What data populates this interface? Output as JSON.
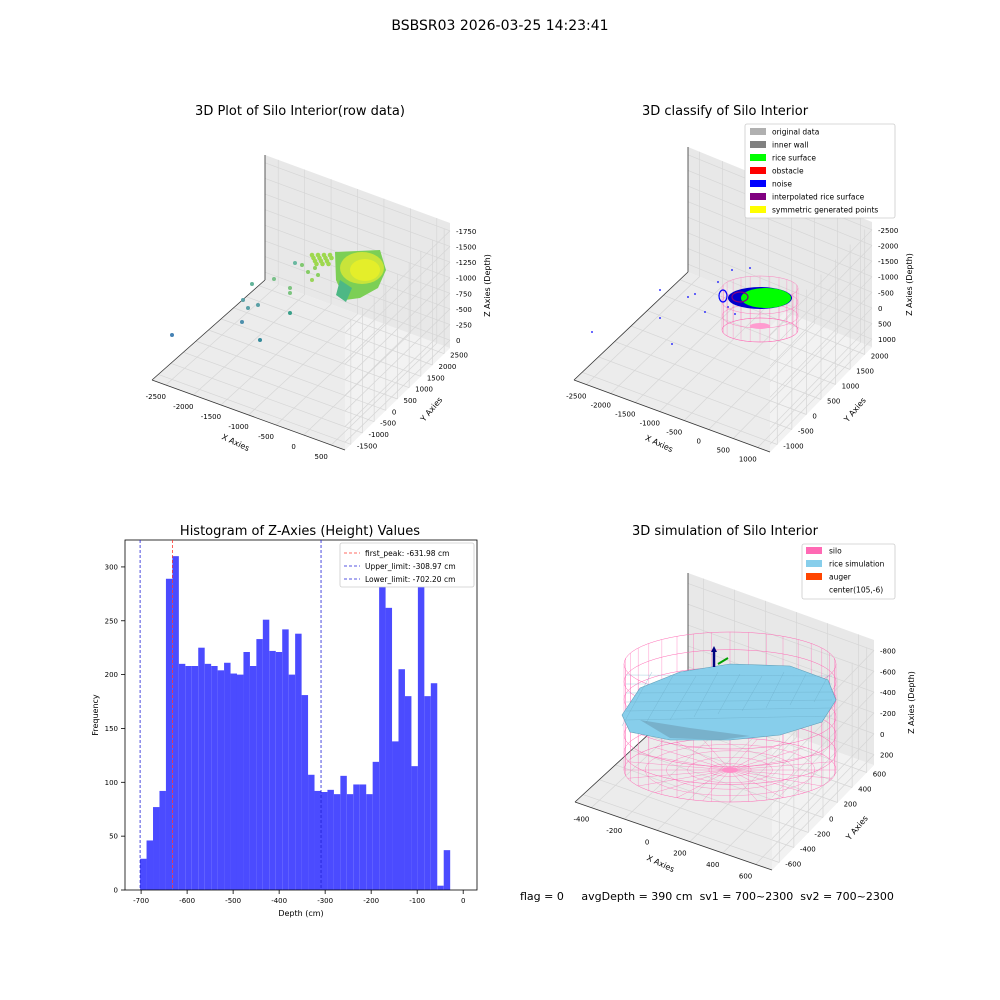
{
  "suptitle": "BSBSR03 2026-03-25 14:23:41",
  "footer": {
    "flag": "flag = 0",
    "avg_depth": "avgDepth = 390 cm",
    "sv1": "sv1 = 700~2300",
    "sv2": "sv2 = 700~2300"
  },
  "colors": {
    "hist_bar": "#4b4bff",
    "first_peak": "#ff3b30",
    "limits": "#1f1fd6",
    "silo": "#ff69b4",
    "rice_sim": "#87ceeb",
    "auger": "#ff4500",
    "rice_surface": "#00ff00",
    "noise": "#0000ff"
  },
  "chart_data": [
    {
      "type": "scatter3d",
      "title": "3D Plot of Silo Interior(row data)",
      "xlabel": "X Axies",
      "ylabel": "Y Axies",
      "zlabel": "Z Axies (Depth)",
      "x_ticks": [
        "-2500",
        "-2000",
        "-1500",
        "-1000",
        "-500",
        "0",
        "500"
      ],
      "y_ticks": [
        "-1500",
        "-1000",
        "-500",
        "0",
        "500",
        "1000",
        "1500",
        "2000",
        "2500"
      ],
      "z_ticks": [
        "0",
        "-250",
        "-500",
        "-750",
        "-1000",
        "-1250",
        "-1500",
        "-1750"
      ]
    },
    {
      "type": "scatter3d",
      "title": "3D classify of Silo Interior",
      "xlabel": "X Axies",
      "ylabel": "Y Axies",
      "zlabel": "Z Axies (Depth)",
      "x_ticks": [
        "-2500",
        "-2000",
        "-1500",
        "-1000",
        "-500",
        "0",
        "500",
        "1000"
      ],
      "y_ticks": [
        "-1000",
        "-500",
        "0",
        "500",
        "1000",
        "1500",
        "2000"
      ],
      "z_ticks": [
        "1000",
        "500",
        "0",
        "-500",
        "-1000",
        "-1500",
        "-2000",
        "-2500"
      ],
      "legend": [
        {
          "label": "original data",
          "color": "#b0b0b0"
        },
        {
          "label": "inner wall",
          "color": "#808080"
        },
        {
          "label": "rice surface",
          "color": "#00ff00"
        },
        {
          "label": "obstacle",
          "color": "#ff0000"
        },
        {
          "label": "noise",
          "color": "#0000ff"
        },
        {
          "label": "interpolated rice surface",
          "color": "#800080"
        },
        {
          "label": "symmetric generated points",
          "color": "#ffff00"
        }
      ]
    },
    {
      "type": "bar",
      "title": "Histogram of Z-Axies (Height) Values",
      "xlabel": "Depth (cm)",
      "ylabel": "Frequency",
      "xlim": [
        -735,
        30
      ],
      "ylim": [
        0,
        325
      ],
      "x_ticks": [
        -700,
        -600,
        -500,
        -400,
        -300,
        -200,
        -100,
        0
      ],
      "y_ticks": [
        0,
        50,
        100,
        150,
        200,
        250,
        300
      ],
      "bin_start": -702.2,
      "bin_width": 14.04,
      "values": [
        29,
        46,
        77,
        92,
        289,
        310,
        210,
        208,
        208,
        225,
        210,
        208,
        204,
        211,
        201,
        200,
        221,
        208,
        233,
        251,
        222,
        221,
        242,
        200,
        238,
        181,
        107,
        92,
        91,
        93,
        89,
        106,
        89,
        98,
        98,
        89,
        119,
        290,
        262,
        138,
        205,
        180,
        115,
        290,
        180,
        192,
        4,
        37
      ],
      "vlines": [
        {
          "x": -631.98,
          "label": "first_peak: -631.98 cm",
          "color": "#ff3b30"
        },
        {
          "x": -308.97,
          "label": "Upper_limit: -308.97 cm",
          "color": "#1f1fd6"
        },
        {
          "x": -702.2,
          "label": "Lower_limit: -702.20 cm",
          "color": "#1f1fd6"
        }
      ]
    },
    {
      "type": "surface3d",
      "title": "3D simulation of Silo Interior",
      "xlabel": "X Axies",
      "ylabel": "Y Axies",
      "zlabel": "Z Axies (Depth)",
      "x_ticks": [
        "-400",
        "-200",
        "0",
        "200",
        "400",
        "600"
      ],
      "y_ticks": [
        "-600",
        "-400",
        "-200",
        "0",
        "200",
        "400",
        "600"
      ],
      "z_ticks": [
        "200",
        "0",
        "-200",
        "-400",
        "-600",
        "-800"
      ],
      "legend": [
        {
          "label": "silo",
          "color": "#ff69b4"
        },
        {
          "label": "rice simulation",
          "color": "#87ceeb"
        },
        {
          "label": "auger",
          "color": "#ff4500"
        },
        {
          "label": "center(105,-6)",
          "color": ""
        }
      ]
    }
  ]
}
